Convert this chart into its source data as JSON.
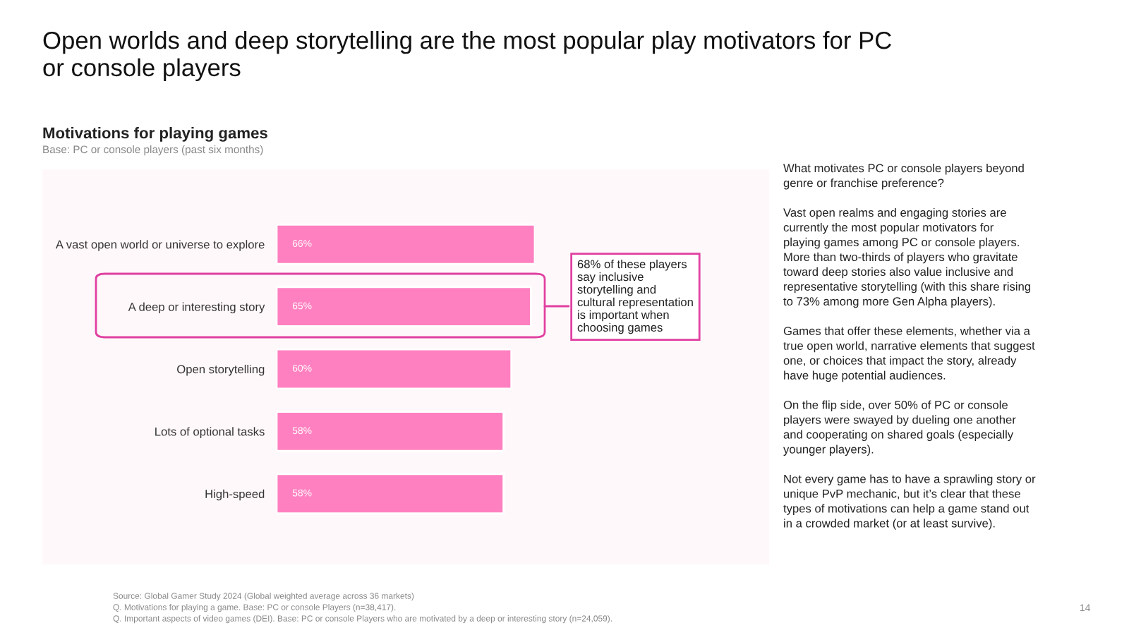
{
  "chart_data": {
    "type": "bar",
    "orientation": "horizontal",
    "title": "Open worlds and deep storytelling are the most popular play motivators for PC\nor console players",
    "subtitle": "Motivations for playing games",
    "categories": [
      "A vast open world or universe to explore",
      "A deep or interesting story",
      "Open storytelling",
      "Lots of optional tasks",
      "High-speed"
    ],
    "values": [
      66,
      65,
      60,
      58,
      58
    ],
    "value_labels": [
      "66%",
      "65%",
      "60%",
      "58%",
      "58%"
    ],
    "color": "#ff80c0",
    "tick_labels": "y",
    "grid": false,
    "annotations": [
      "Base: PC or console players (past six months)",
      "68% of these players\nsay inclusive\nstorytelling and\ncultural representation\nis important when\nchoosing games",
      "What motivates PC or console players beyond\ngenre or franchise preference?\n\nVast open realms and engaging stories are\ncurrently the most popular motivators for\nplaying games among PC or console players.\nMore than two-thirds of players who gravitate\ntoward deep stories also value inclusive and\nrepresentative storytelling (with this share rising\nto 73% among more Gen Alpha players).\n\nGames that offer these elements, whether via a\ntrue open world, narrative elements that suggest\none, or choices that impact the story, already\nhave huge potential audiences.\n\nOn the flip side, over 50% of PC or console\nplayers were swayed by dueling one another\nand cooperating on shared goals (especially\nyounger players).\n\nNot every game has to have a sprawling story or\nunique PvP mechanic, but it’s clear that these\ntypes of motivations can help a game stand out\nin a crowded market (or at least survive).",
      "Source: Global Gamer Study 2024 (Global weighted average across 36 markets)",
      "Q. Motivations for playing a game. Base: PC or console Players (n=38,417).",
      "Q. Important aspects of video games (DEI). Base: PC or console Players who are motivated by a deep or interesting story (n=24,059).",
      "14"
    ]
  }
}
